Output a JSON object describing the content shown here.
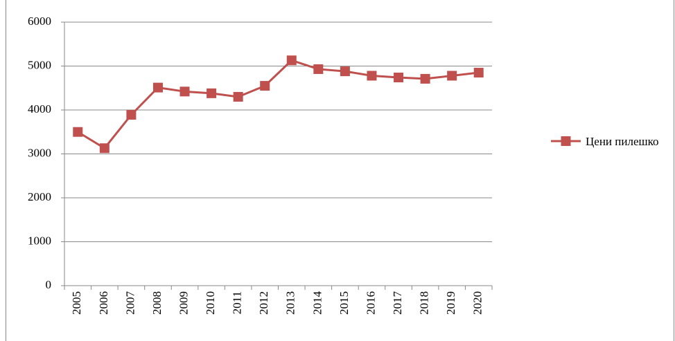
{
  "chart_data": {
    "type": "line",
    "categories": [
      "2005",
      "2006",
      "2007",
      "2008",
      "2009",
      "2010",
      "2011",
      "2012",
      "2013",
      "2014",
      "2015",
      "2016",
      "2017",
      "2018",
      "2019",
      "2020"
    ],
    "series": [
      {
        "name": "Цени пилешко",
        "color": "#c0504d",
        "values": [
          3500,
          3130,
          3890,
          4510,
          4420,
          4380,
          4300,
          4550,
          5130,
          4930,
          4880,
          4780,
          4740,
          4710,
          4780,
          4850
        ]
      }
    ],
    "ylim": [
      0,
      6000
    ],
    "yticks": [
      0,
      1000,
      2000,
      3000,
      4000,
      5000,
      6000
    ],
    "grid": true,
    "legend": "right"
  }
}
